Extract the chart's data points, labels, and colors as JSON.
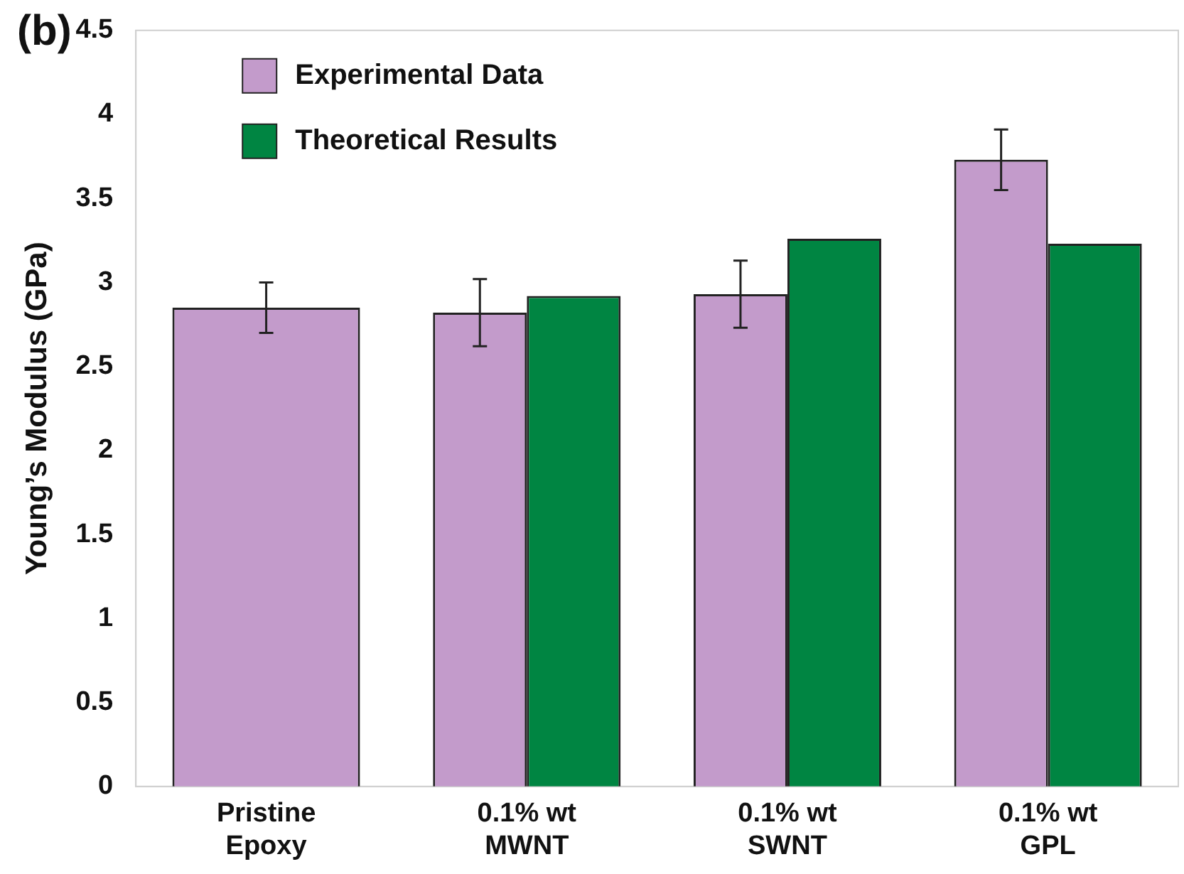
{
  "chart_data": {
    "type": "bar",
    "ylabel": "Young’s Modulus (GPa)",
    "annotations": [
      "(b)"
    ],
    "categories": [
      "Pristine\nEpoxy",
      "0.1% wt\nMWNT",
      "0.1% wt\nSWNT",
      "0.1% wt\nGPL"
    ],
    "series": [
      {
        "name": "Experimental Data",
        "color": "#c39bcb",
        "values": [
          2.85,
          2.82,
          2.93,
          3.73
        ],
        "errors": [
          0.15,
          0.2,
          0.2,
          0.18
        ]
      },
      {
        "name": "Theoretical Results",
        "color": "#008542",
        "values": [
          null,
          2.92,
          3.26,
          3.23
        ]
      }
    ],
    "ylim": [
      0,
      4.5
    ],
    "yticks": [
      0,
      0.5,
      1,
      1.5,
      2,
      2.5,
      3,
      3.5,
      4,
      4.5
    ],
    "grid": false,
    "legend": "top left"
  }
}
